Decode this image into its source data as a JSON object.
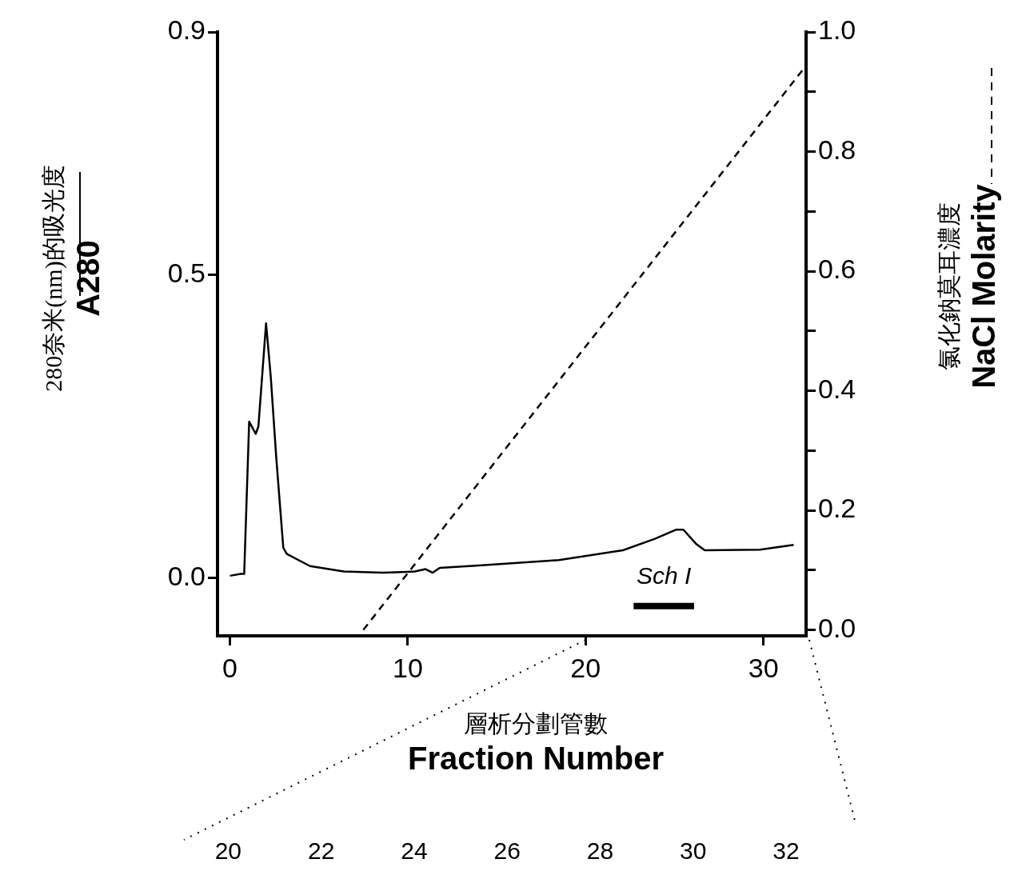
{
  "chart_data": {
    "type": "line",
    "xlabel": "層析分劃管數\nFraction Number",
    "ylabel": "280奈米(nm)的吸光度\nA280",
    "y2label": "氯化鈉莫耳濃度\nNaCl Molarity",
    "xlim": [
      -0.7,
      32.4
    ],
    "xticks": [
      0,
      10,
      20,
      30
    ],
    "x2lim": [
      19.77,
      32.43
    ],
    "x2ticks": [
      20,
      22,
      24,
      26,
      28,
      30,
      32
    ],
    "ylim": [
      -0.095,
      0.9
    ],
    "yticks": [
      {
        "value": 0,
        "label": "0.0"
      },
      {
        "value": 0.5,
        "label": "0.5"
      },
      {
        "value": 0.9,
        "label": "0.9"
      }
    ],
    "y2lim": [
      -0.01,
      1.0
    ],
    "y2ticks": [
      {
        "value": 0,
        "label": "0.0"
      },
      {
        "value": 0.1,
        "label": null
      },
      {
        "value": 0.2,
        "label": "0.2"
      },
      {
        "value": 0.3,
        "label": null
      },
      {
        "value": 0.4,
        "label": "0.4"
      },
      {
        "value": 0.5,
        "label": null
      },
      {
        "value": 0.6,
        "label": "0.6"
      },
      {
        "value": 0.7,
        "label": null
      },
      {
        "value": 0.8,
        "label": "0.8"
      },
      {
        "value": 0.9,
        "label": null
      },
      {
        "value": 1.0,
        "label": "1.0"
      }
    ],
    "grid": false,
    "marker": "none",
    "series": [
      {
        "color": "#000000",
        "line_style": "solid",
        "x": [
          0,
          0.6,
          0.8,
          1.08,
          1.45,
          1.6,
          2.03,
          2.3,
          2.6,
          3.0,
          3.2,
          4.5,
          6.4,
          8.6,
          10.4,
          11.0,
          11.4,
          11.8,
          14.0,
          18.5,
          22.1,
          23.9,
          25.1,
          25.5,
          26.2,
          26.7,
          29.8,
          31.7
        ],
        "values": [
          0.004,
          0.007,
          0.007,
          0.258,
          0.238,
          0.25,
          0.42,
          0.33,
          0.2,
          0.05,
          0.04,
          0.02,
          0.011,
          0.009,
          0.011,
          0.015,
          0.009,
          0.017,
          0.021,
          0.03,
          0.046,
          0.065,
          0.08,
          0.08,
          0.057,
          0.046,
          0.047,
          0.055
        ]
      },
      {
        "color": "#000000",
        "line_style": "dashed",
        "axis": "y2",
        "x": [
          7.5,
          32.3
        ],
        "values": [
          0.0,
          0.94
        ]
      },
      {
        "name": "Sch I",
        "color": "#000000",
        "line_style": "solid",
        "x": [
          22.7,
          26.1
        ],
        "values": [
          -0.046,
          -0.046
        ]
      }
    ]
  }
}
